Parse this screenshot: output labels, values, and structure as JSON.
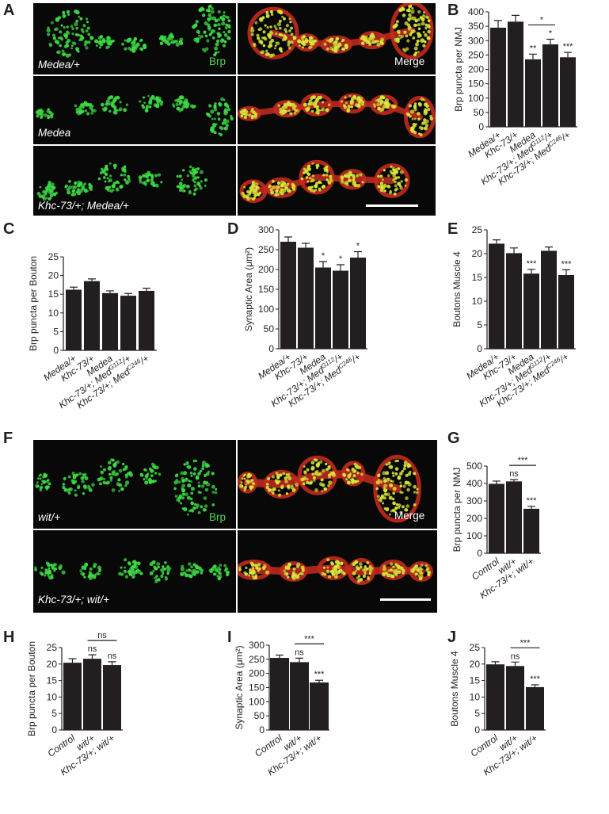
{
  "figure": {
    "panels": {
      "A": "A",
      "B": "B",
      "C": "C",
      "D": "D",
      "E": "E",
      "F": "F",
      "G": "G",
      "H": "H",
      "I": "I",
      "J": "J"
    },
    "micrographs_A": {
      "channel_label": "Brp",
      "merge_label": "Merge",
      "rows": [
        "Medea/+",
        "Medea",
        "Khc-73/+; Medea/+"
      ]
    },
    "micrographs_F": {
      "channel_label": "Brp",
      "merge_label": "Merge",
      "rows": [
        "wit/+",
        "Khc-73/+; wit/+"
      ]
    },
    "colors": {
      "bar": "#231f20",
      "brp_green": "#3ddc44",
      "hrp_red": "#c42a1e"
    }
  },
  "chart_data": [
    {
      "panel": "B",
      "type": "bar",
      "categories": [
        "Medea/+",
        "Khc-73/+",
        "Medea",
        "Khc-73/+; Med^G112/+",
        "Khc-73/+; Med^C246/+"
      ],
      "values": [
        345,
        366,
        235,
        287,
        242
      ],
      "errors": [
        25,
        22,
        18,
        18,
        17
      ],
      "ylabel": "Brp puncta per NMJ",
      "ylim": [
        0,
        400
      ],
      "ticks": [
        0,
        50,
        100,
        150,
        200,
        250,
        300,
        350,
        400
      ],
      "significance": [
        "",
        "",
        "**",
        "*",
        "***"
      ],
      "brackets": [
        {
          "from": 2,
          "to": 3,
          "label": "*"
        }
      ]
    },
    {
      "panel": "C",
      "type": "bar",
      "categories": [
        "Medea/+",
        "Khc-73/+",
        "Medea",
        "Khc-73/+; Med^G112/+",
        "Khc-73/+; Med^C246/+"
      ],
      "values": [
        16.2,
        18.5,
        15.3,
        14.6,
        15.9
      ],
      "errors": [
        0.7,
        0.6,
        0.6,
        0.6,
        0.7
      ],
      "ylabel": "Brp puncta per Bouton",
      "ylim": [
        0,
        25
      ],
      "ticks": [
        0,
        5,
        10,
        15,
        20,
        25
      ],
      "significance": [
        "",
        "",
        "",
        "",
        ""
      ],
      "brackets": []
    },
    {
      "panel": "D",
      "type": "bar",
      "categories": [
        "Medea/+",
        "Khc-73/+",
        "Medea",
        "Khc-73/+; Med^G112/+",
        "Khc-73/+; Med^C246/+"
      ],
      "values": [
        270,
        255,
        205,
        197,
        230
      ],
      "errors": [
        12,
        11,
        15,
        15,
        15
      ],
      "ylabel": "Synaptic Area (μm²)",
      "ylim": [
        0,
        300
      ],
      "ticks": [
        0,
        50,
        100,
        150,
        200,
        250,
        300
      ],
      "significance": [
        "",
        "",
        "*",
        "*",
        "*"
      ],
      "brackets": []
    },
    {
      "panel": "E",
      "type": "bar",
      "categories": [
        "Medea/+",
        "Khc-73/+",
        "Medea",
        "Khc-73/+; Med^G112/+",
        "Khc-73/+; Med^C246/+"
      ],
      "values": [
        22.1,
        20.1,
        15.8,
        20.6,
        15.5
      ],
      "errors": [
        0.8,
        1.1,
        0.9,
        0.8,
        1.1
      ],
      "ylabel": "Boutons Muscle 4",
      "ylim": [
        0,
        25
      ],
      "ticks": [
        0,
        5,
        10,
        15,
        20,
        25
      ],
      "significance": [
        "",
        "",
        "***",
        "",
        "***"
      ],
      "brackets": []
    },
    {
      "panel": "G",
      "type": "bar",
      "categories": [
        "Control",
        "wit/+",
        "Khc-73/+; wit/+"
      ],
      "values": [
        398,
        412,
        255
      ],
      "errors": [
        16,
        10,
        14
      ],
      "ylabel": "Brp puncta per NMJ",
      "ylim": [
        0,
        500
      ],
      "ticks": [
        0,
        100,
        200,
        300,
        400,
        500
      ],
      "significance": [
        "",
        "ns",
        "***"
      ],
      "brackets": [
        {
          "from": 1,
          "to": 2,
          "label": "***"
        }
      ]
    },
    {
      "panel": "H",
      "type": "bar",
      "categories": [
        "Control",
        "wit/+",
        "Khc-73/+; wit/+"
      ],
      "values": [
        20.4,
        21.6,
        19.7
      ],
      "errors": [
        1.2,
        1.2,
        1.0
      ],
      "ylabel": "Brp puncta per Bouton",
      "ylim": [
        0,
        25
      ],
      "ticks": [
        0,
        5,
        10,
        15,
        20,
        25
      ],
      "significance": [
        "",
        "ns",
        "ns"
      ],
      "brackets": [
        {
          "from": 1,
          "to": 2,
          "label": "ns"
        }
      ]
    },
    {
      "panel": "I",
      "type": "bar",
      "categories": [
        "Control",
        "wit/+",
        "Khc-73/+; wit/+"
      ],
      "values": [
        255,
        240,
        168
      ],
      "errors": [
        10,
        14,
        8
      ],
      "ylabel": "Synaptic Area (μm²)",
      "ylim": [
        0,
        300
      ],
      "ticks": [
        0,
        50,
        100,
        150,
        200,
        250,
        300
      ],
      "significance": [
        "",
        "ns",
        "***"
      ],
      "brackets": [
        {
          "from": 1,
          "to": 2,
          "label": "***"
        }
      ]
    },
    {
      "panel": "J",
      "type": "bar",
      "categories": [
        "Control",
        "wit/+",
        "Khc-73/+; wit/+"
      ],
      "values": [
        19.9,
        19.4,
        13.0
      ],
      "errors": [
        0.8,
        1.2,
        0.7
      ],
      "ylabel": "Boutons Muscle 4",
      "ylim": [
        0,
        25
      ],
      "ticks": [
        0,
        5,
        10,
        15,
        20,
        25
      ],
      "significance": [
        "",
        "ns",
        "***"
      ],
      "brackets": [
        {
          "from": 1,
          "to": 2,
          "label": "***"
        }
      ]
    }
  ]
}
